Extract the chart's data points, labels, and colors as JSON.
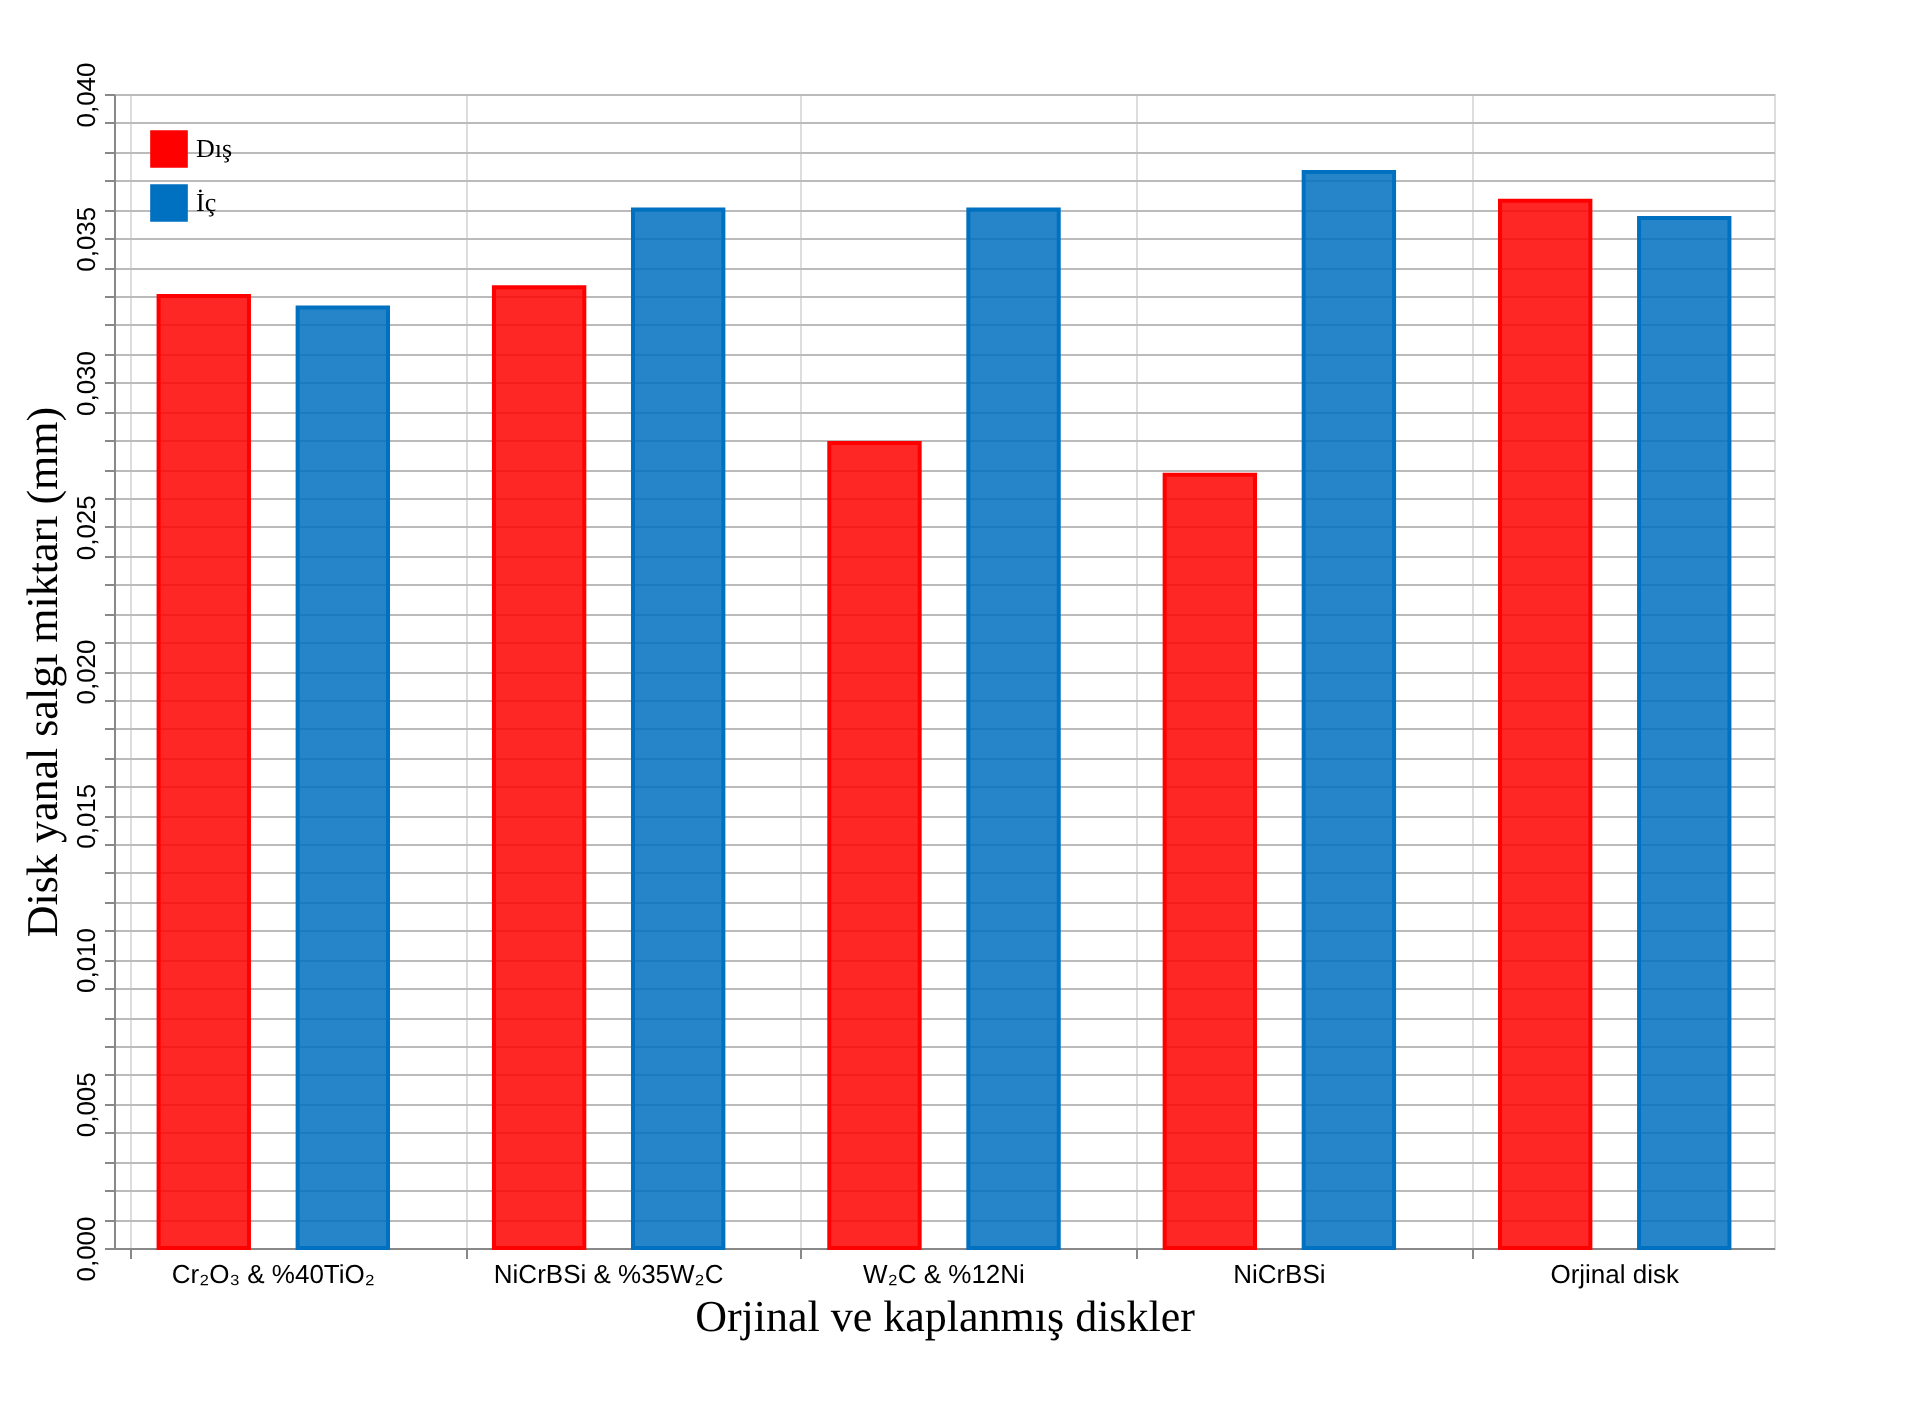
{
  "chart_data": {
    "type": "bar",
    "xlabel": "Orjinal ve kaplanmış diskler",
    "ylabel": "Disk yanal salgı miktarı (mm)",
    "categories": [
      "Cr₂O₃ & %40TiO₂",
      "NiCrBSi & %35W₂C",
      "W₂C & %12Ni",
      "NiCrBSi",
      "Orjinal disk"
    ],
    "series": [
      {
        "name": "Dış",
        "color": "#ff0000",
        "values": [
          0.033,
          0.0333,
          0.0279,
          0.0268,
          0.0363
        ]
      },
      {
        "name": "İç",
        "color": "#0070c0",
        "values": [
          0.0326,
          0.036,
          0.036,
          0.0373,
          0.0357
        ]
      }
    ],
    "ylim": [
      0,
      0.04
    ],
    "yticks": [
      {
        "value": 0,
        "label": "0,000"
      },
      {
        "value": 0.001,
        "label": null
      },
      {
        "value": 0.002,
        "label": null
      },
      {
        "value": 0.003,
        "label": null
      },
      {
        "value": 0.004,
        "label": null
      },
      {
        "value": 0.005,
        "label": "0,005"
      },
      {
        "value": 0.006,
        "label": null
      },
      {
        "value": 0.007,
        "label": null
      },
      {
        "value": 0.008,
        "label": null
      },
      {
        "value": 0.009,
        "label": null
      },
      {
        "value": 0.01,
        "label": "0,010"
      },
      {
        "value": 0.011,
        "label": null
      },
      {
        "value": 0.012,
        "label": null
      },
      {
        "value": 0.013,
        "label": null
      },
      {
        "value": 0.014,
        "label": null
      },
      {
        "value": 0.015,
        "label": "0,015"
      },
      {
        "value": 0.016,
        "label": null
      },
      {
        "value": 0.017,
        "label": null
      },
      {
        "value": 0.018,
        "label": null
      },
      {
        "value": 0.019,
        "label": null
      },
      {
        "value": 0.02,
        "label": "0,020"
      },
      {
        "value": 0.021,
        "label": null
      },
      {
        "value": 0.022,
        "label": null
      },
      {
        "value": 0.023,
        "label": null
      },
      {
        "value": 0.024,
        "label": null
      },
      {
        "value": 0.025,
        "label": "0,025"
      },
      {
        "value": 0.026,
        "label": null
      },
      {
        "value": 0.027,
        "label": null
      },
      {
        "value": 0.028,
        "label": null
      },
      {
        "value": 0.029,
        "label": null
      },
      {
        "value": 0.03,
        "label": "0,030"
      },
      {
        "value": 0.031,
        "label": null
      },
      {
        "value": 0.032,
        "label": null
      },
      {
        "value": 0.033,
        "label": null
      },
      {
        "value": 0.034,
        "label": null
      },
      {
        "value": 0.035,
        "label": "0,035"
      },
      {
        "value": 0.036,
        "label": null
      },
      {
        "value": 0.037,
        "label": null
      },
      {
        "value": 0.038,
        "label": null
      },
      {
        "value": 0.039,
        "label": null
      },
      {
        "value": 0.04,
        "label": "0,040"
      }
    ],
    "grid": true,
    "legend": "top left"
  }
}
